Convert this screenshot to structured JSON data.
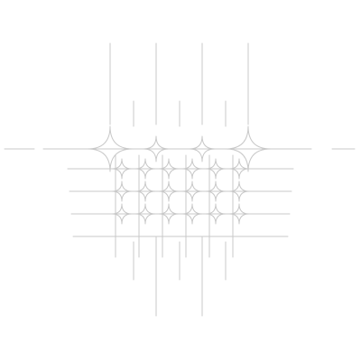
{
  "artwork": {
    "background": "#ffffff",
    "stroke_color": "#c8c8c8",
    "motif": "grid-of-concave-rounded-crossings"
  }
}
